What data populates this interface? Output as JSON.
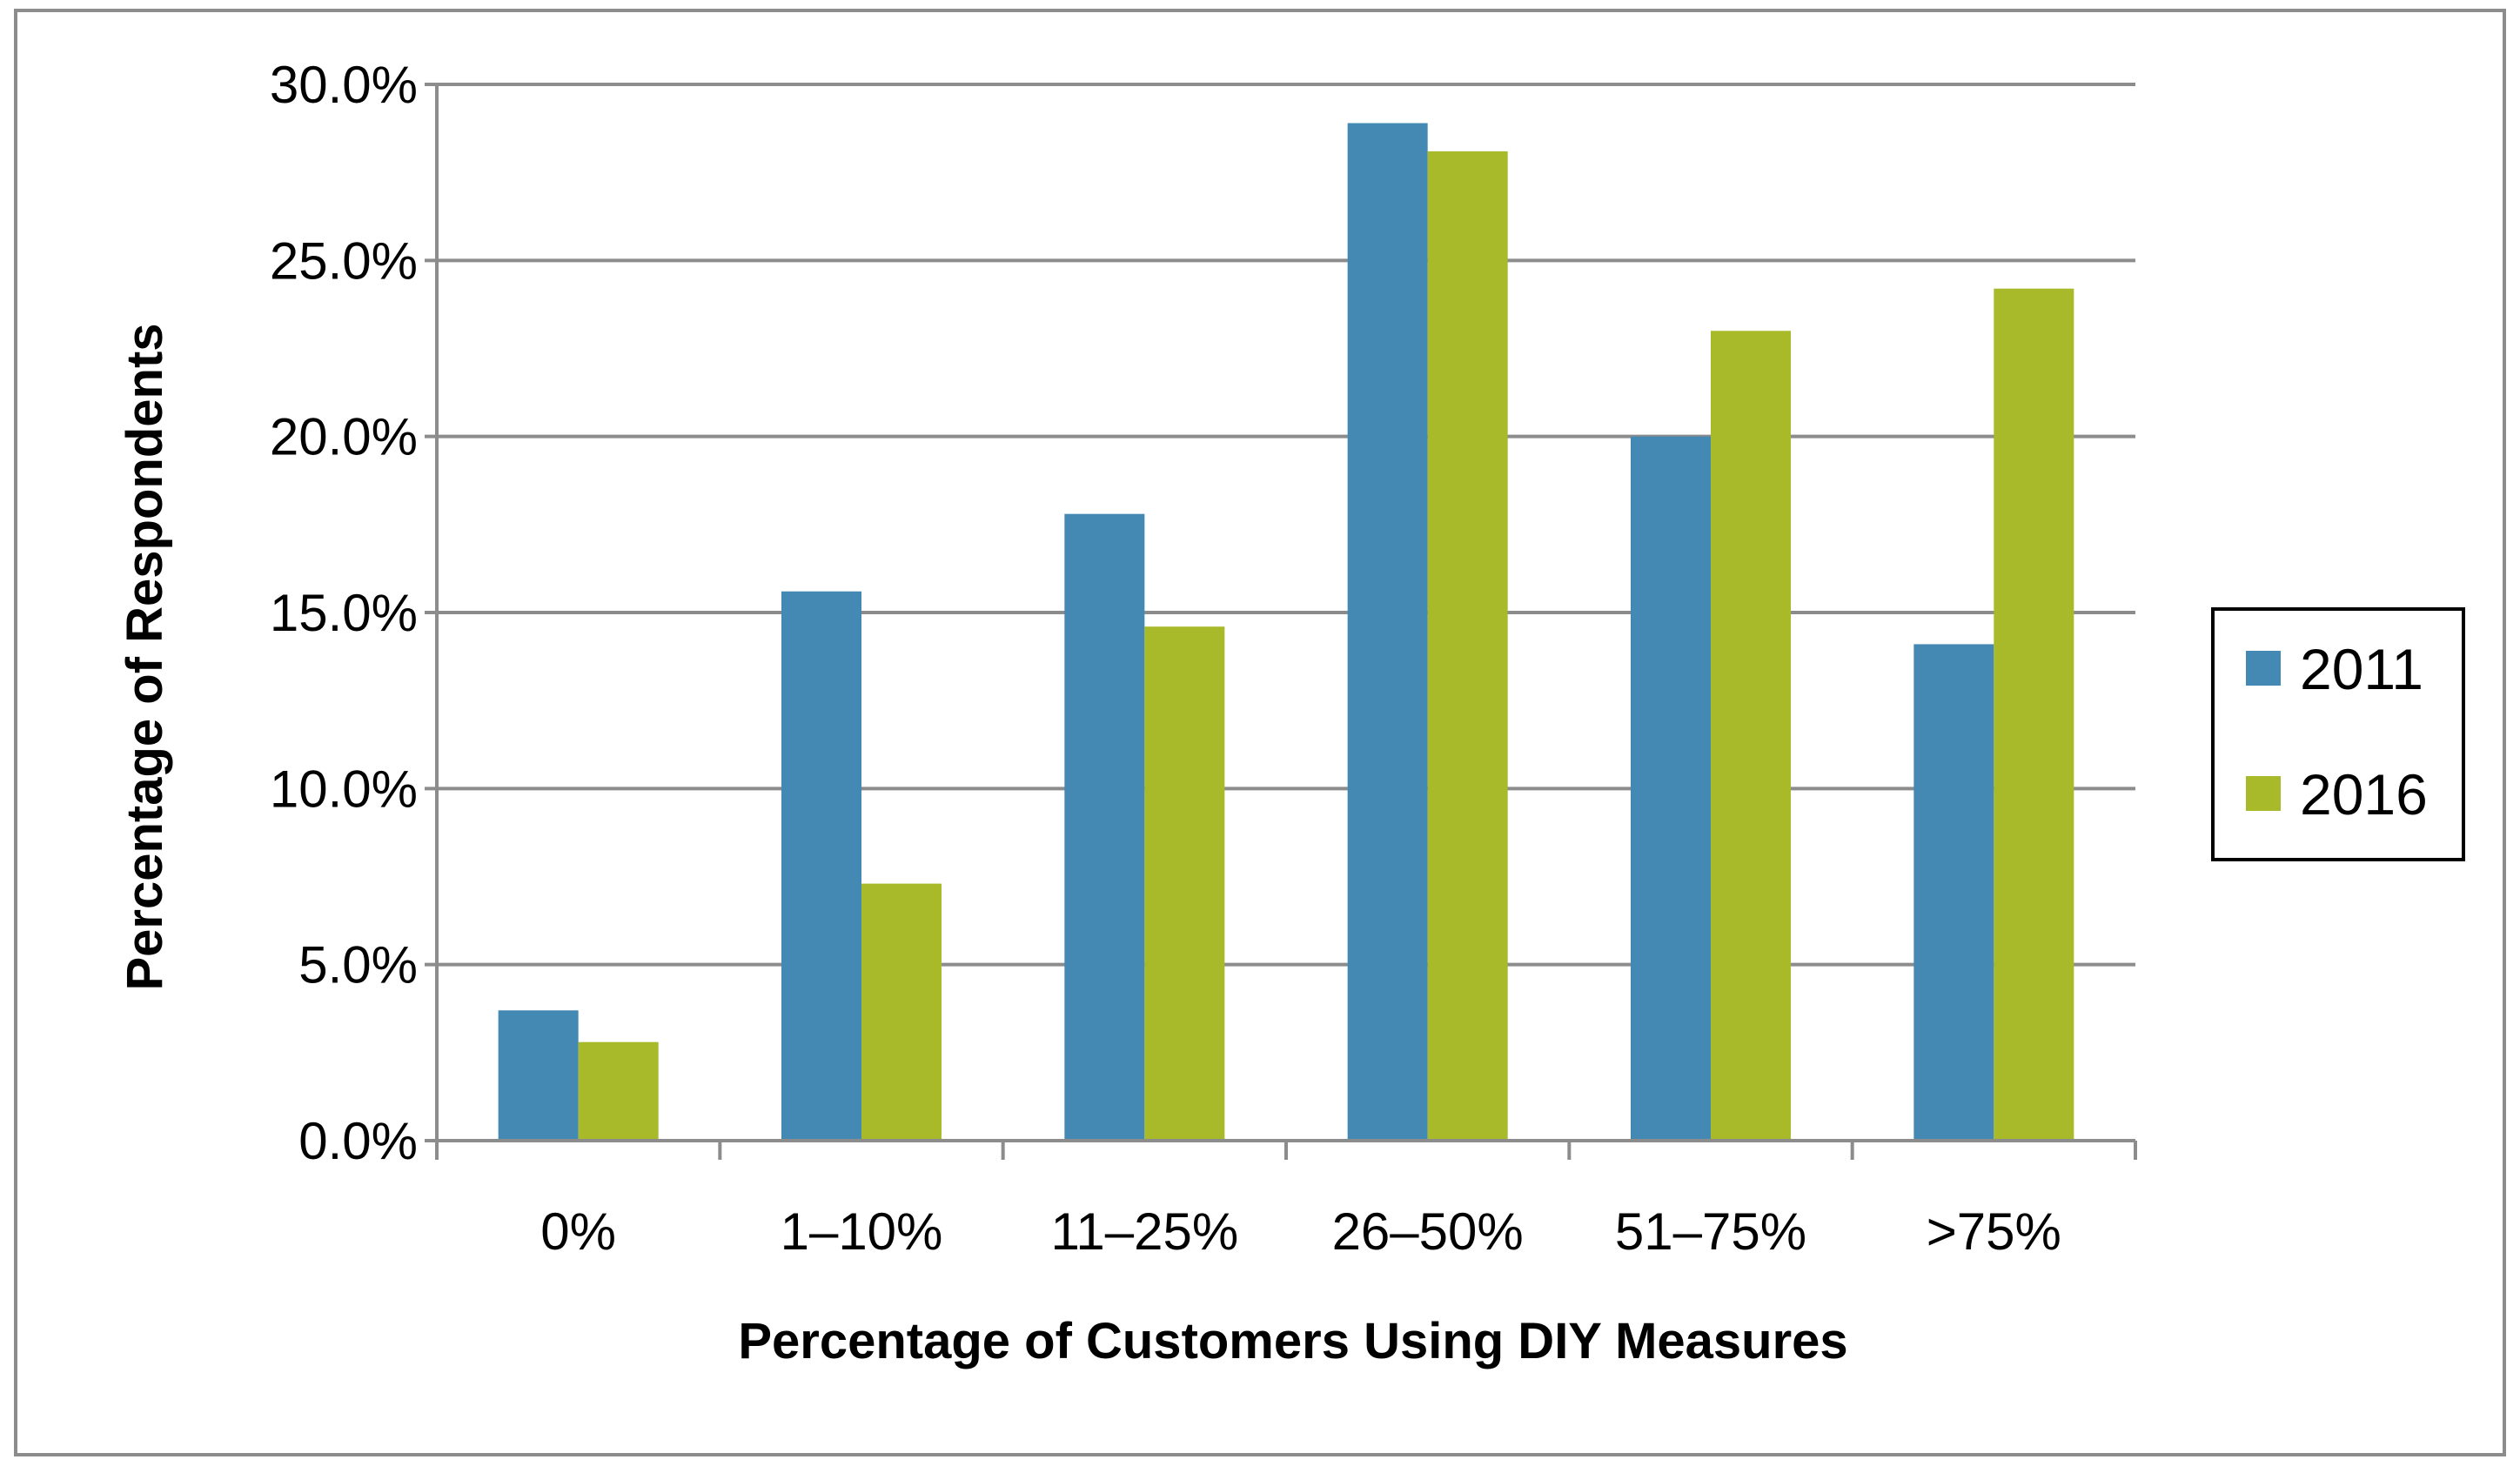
{
  "chart_data": {
    "type": "bar",
    "title": "",
    "xlabel": "Percentage of Customers Using DIY Measures",
    "ylabel": "Percentage of  Respondents",
    "categories": [
      "0%",
      "1–10%",
      "11–25%",
      "26–50%",
      "51–75%",
      ">75%"
    ],
    "series": [
      {
        "name": "2011",
        "color": "#4389B4",
        "values": [
          3.7,
          15.6,
          17.8,
          28.9,
          20.0,
          14.1
        ]
      },
      {
        "name": "2016",
        "color": "#A8B92A",
        "values": [
          2.8,
          7.3,
          14.6,
          28.1,
          23.0,
          24.2
        ]
      }
    ],
    "ylim": [
      0,
      30
    ],
    "yticks": [
      0,
      5,
      10,
      15,
      20,
      25,
      30
    ],
    "ytick_labels": [
      "0.0%",
      "5.0%",
      "10.0%",
      "15.0%",
      "20.0%",
      "25.0%",
      "30.0%"
    ],
    "grid": true,
    "legend_position": "right"
  }
}
